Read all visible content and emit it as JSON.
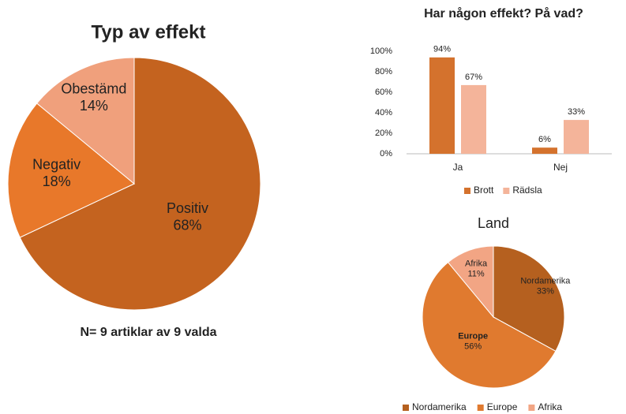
{
  "chart_data": [
    {
      "type": "pie",
      "title": "Typ av effekt",
      "note": "N= 9 artiklar av 9 valda",
      "categories": [
        "Positiv",
        "Negativ",
        "Obestämd"
      ],
      "values": [
        68,
        18,
        14
      ],
      "value_labels": [
        "68%",
        "18%",
        "14%"
      ],
      "colors": [
        "#c4631f",
        "#e8782a",
        "#f0a07c"
      ]
    },
    {
      "type": "bar",
      "title": "Har någon effekt? På vad?",
      "categories": [
        "Ja",
        "Nej"
      ],
      "series": [
        {
          "name": "Brott",
          "color": "#d4722d",
          "values": [
            94,
            6
          ],
          "value_labels": [
            "94%",
            "6%"
          ]
        },
        {
          "name": "Rädsla",
          "color": "#f4b49a",
          "values": [
            67,
            33
          ],
          "value_labels": [
            "67%",
            "33%"
          ]
        }
      ],
      "ylim": [
        0,
        100
      ],
      "yticks": [
        {
          "value": 0,
          "label": "0%"
        },
        {
          "value": 20,
          "label": "20%"
        },
        {
          "value": 40,
          "label": "40%"
        },
        {
          "value": 60,
          "label": "60%"
        },
        {
          "value": 80,
          "label": "80%"
        },
        {
          "value": 100,
          "label": "100%"
        }
      ],
      "legend": "bottom"
    },
    {
      "type": "pie",
      "title": "Land",
      "categories": [
        "Nordamerika",
        "Europe",
        "Afrika"
      ],
      "values": [
        33,
        56,
        11
      ],
      "value_labels": [
        "33%",
        "56%",
        "11%"
      ],
      "colors": [
        "#b5601f",
        "#e07a2f",
        "#f2a584"
      ],
      "legend": "bottom"
    }
  ]
}
